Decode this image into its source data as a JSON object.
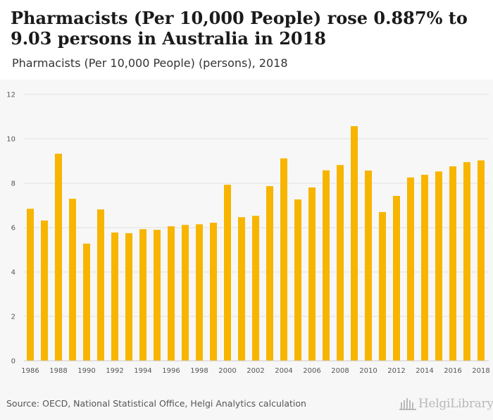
{
  "header": {
    "title": "Pharmacists (Per 10,000 People) rose 0.887% to 9.03 persons in Australia in 2018",
    "subtitle": "Pharmacists (Per 10,000 People) (persons), 2018"
  },
  "footer": {
    "source": "Source: OECD, National Statistical Office, Helgi Analytics calculation",
    "logo_text": "HelgiLibrary"
  },
  "colors": {
    "bar": "#f7b500",
    "grid": "#e0e0e0",
    "background": "#f7f7f7",
    "axis_text": "#555555"
  },
  "chart_data": {
    "type": "bar",
    "title": "Pharmacists (Per 10,000 People) rose 0.887% to 9.03 persons in Australia in 2018",
    "subtitle": "Pharmacists (Per 10,000 People) (persons), 2018",
    "xlabel": "",
    "ylabel": "",
    "ylim": [
      0,
      12
    ],
    "yticks": [
      0,
      2,
      4,
      6,
      8,
      10,
      12
    ],
    "grid": true,
    "categories": [
      1986,
      1987,
      1988,
      1989,
      1990,
      1991,
      1992,
      1993,
      1994,
      1995,
      1996,
      1997,
      1998,
      1999,
      2000,
      2001,
      2002,
      2003,
      2004,
      2005,
      2006,
      2007,
      2008,
      2009,
      2010,
      2011,
      2012,
      2013,
      2014,
      2015,
      2016,
      2017,
      2018
    ],
    "xtick_labels": [
      "1986",
      "1988",
      "1990",
      "1992",
      "1994",
      "1996",
      "1998",
      "2000",
      "2002",
      "2004",
      "2006",
      "2008",
      "2010",
      "2012",
      "2014",
      "2016",
      "2018"
    ],
    "values": [
      6.85,
      6.32,
      9.33,
      7.3,
      5.28,
      6.82,
      5.78,
      5.75,
      5.93,
      5.9,
      6.06,
      6.12,
      6.15,
      6.22,
      7.93,
      6.47,
      6.53,
      7.87,
      9.12,
      7.27,
      7.81,
      8.58,
      8.82,
      10.57,
      8.57,
      6.7,
      7.43,
      8.26,
      8.38,
      8.53,
      8.76,
      8.95,
      9.03
    ]
  }
}
